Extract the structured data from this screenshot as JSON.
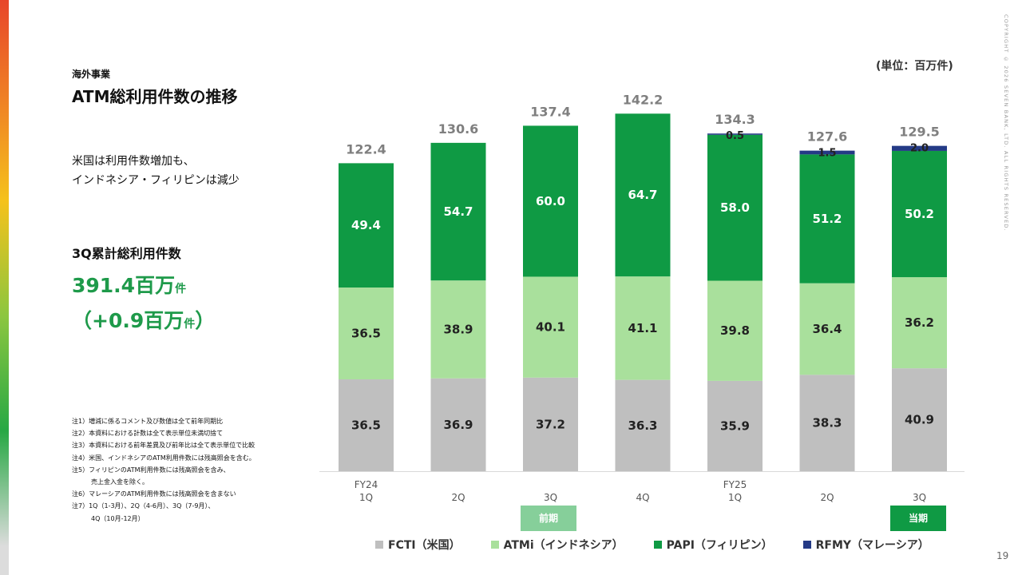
{
  "branding": {
    "copyright": "COPYRIGHT © 2026 SEVEN BANK, LTD. ALL RIGHTS RESERVED.",
    "page_number": "19"
  },
  "left_panel": {
    "section": "海外事業",
    "title": "ATM総利用件数の推移",
    "summary": "米国は利用件数増加も、\nインドネシア・フィリピンは減少",
    "cumulative_label": "3Q累計総利用件数",
    "cumulative_value": "391.4百万",
    "cumulative_value_unit": "件",
    "cumulative_diff_open": "（+0.9百万",
    "cumulative_diff_unit": "件",
    "cumulative_diff_close": "）",
    "notes": [
      "注1）増減に係るコメント及び数値は全て前年同期比",
      "注2）本資料における計数は全て表示単位未満切捨て",
      "注3）本資料における前年差異及び前年比は全て表示単位で比較",
      "注4）米国、インドネシアのATM利用件数には残高照会を含む。",
      "注5）フィリピンのATM利用件数には残高照会を含み、",
      "　　　売上金入金を除く。",
      "注6）マレーシアのATM利用件数には残高照会を含まない",
      "注7）1Q（1-3月）、2Q（4-6月）、3Q（7-9月）、",
      "　　　4Q（10月-12月）"
    ]
  },
  "unit_label": "(単位：百万件)",
  "period_tags": {
    "previous": "前期",
    "current": "当期"
  },
  "legend": [
    {
      "label": "FCTI（米国）",
      "color": "#bfbfbf"
    },
    {
      "label": "ATMi（インドネシア）",
      "color": "#a9e09c"
    },
    {
      "label": "PAPI（フィリピン）",
      "color": "#0f9a44"
    },
    {
      "label": "RFMY（マレーシア）",
      "color": "#243a86"
    }
  ],
  "chart_data": {
    "type": "bar",
    "stacked": true,
    "unit": "(単位：百万件)",
    "categories": [
      [
        "FY24",
        "1Q"
      ],
      [
        "",
        "2Q"
      ],
      [
        "",
        "3Q"
      ],
      [
        "",
        "4Q"
      ],
      [
        "FY25",
        "1Q"
      ],
      [
        "",
        "2Q"
      ],
      [
        "",
        "3Q"
      ]
    ],
    "series": [
      {
        "name": "FCTI（米国）",
        "color": "#bfbfbf",
        "values": [
          36.5,
          36.9,
          37.2,
          36.3,
          35.9,
          38.3,
          40.9
        ]
      },
      {
        "name": "ATMi（インドネシア）",
        "color": "#a9e09c",
        "values": [
          36.5,
          38.9,
          40.1,
          41.1,
          39.8,
          36.4,
          36.2
        ]
      },
      {
        "name": "PAPI（フィリピン）",
        "color": "#0f9a44",
        "values": [
          49.4,
          54.7,
          60.0,
          64.7,
          58.0,
          51.2,
          50.2
        ]
      },
      {
        "name": "RFMY（マレーシア）",
        "color": "#243a86",
        "values": [
          null,
          null,
          null,
          null,
          0.5,
          1.5,
          2.0
        ]
      }
    ],
    "totals": [
      122.4,
      130.6,
      137.4,
      142.2,
      134.3,
      127.6,
      129.5
    ],
    "ylim": [
      0,
      142.2
    ],
    "grid": false
  }
}
